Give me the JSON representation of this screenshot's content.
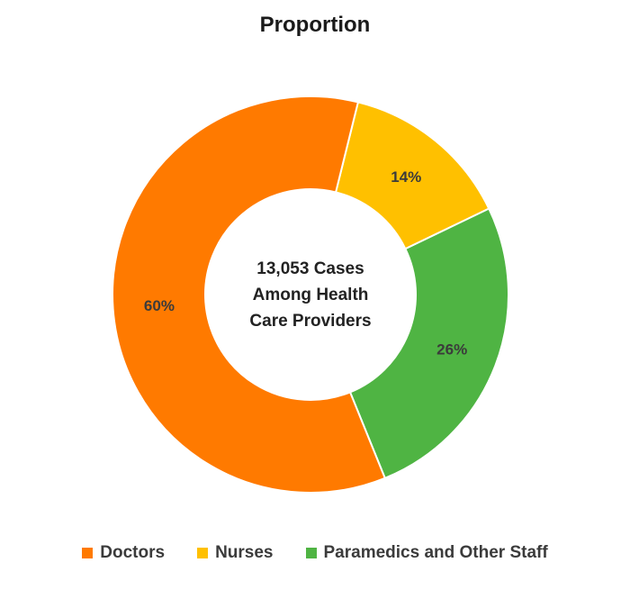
{
  "chart_data": {
    "type": "pie",
    "title": "Proportion",
    "center_label": [
      "13,053 Cases",
      "Among Health",
      "Care Providers"
    ],
    "categories": [
      "Doctors",
      "Nurses",
      "Paramedics and Other Staff"
    ],
    "values": [
      60,
      14,
      26
    ],
    "data_labels": [
      "60%",
      "14%",
      "26%"
    ],
    "colors": [
      "#FF7A00",
      "#FFC000",
      "#4FB443"
    ],
    "donut": true,
    "legend_position": "bottom"
  }
}
